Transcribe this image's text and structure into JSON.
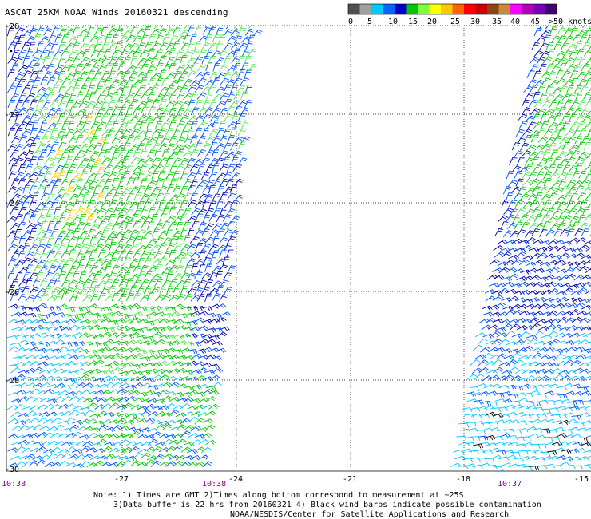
{
  "title": "ASCAT 25KM NOAA Winds 20160321 descending",
  "legend": {
    "ticks": [
      "0",
      "5",
      "10",
      "15",
      "20",
      "25",
      "30",
      "35",
      "40",
      "45",
      ">50 knots"
    ],
    "colors": [
      "#505050",
      "#a0a0a0",
      "#00c8ff",
      "#0064ff",
      "#0000c8",
      "#00c800",
      "#7cff3c",
      "#ffff00",
      "#ffc800",
      "#ff6400",
      "#ff0000",
      "#c80000",
      "#8b4513",
      "#cd853f",
      "#ff00ff",
      "#b400b4",
      "#7800b4",
      "#3c0078"
    ]
  },
  "lat_labels": [
    "-20",
    "-22",
    "-24",
    "-26",
    "-28",
    "-30"
  ],
  "lon_labels": [
    "-27",
    "-24",
    "-21",
    "-18",
    "-15"
  ],
  "times": [
    "10:38",
    "10:38",
    "10:37"
  ],
  "notes": [
    "Note: 1) Times are GMT 2)Times along bottom correspond to measurement at ~25S",
    "3)Data buffer is 22 hrs from 20160321 4) Black wind barbs indicate possible contamination",
    "NOAA/NESDIS/Center for Satellite Applications and Research"
  ],
  "barb_colors": {
    "cyan": "#00c8ff",
    "blue": "#0050ff",
    "navy": "#0000b4",
    "green": "#00c800",
    "light_green": "#50e650",
    "yellow": "#ffd200",
    "black": "#000000"
  }
}
